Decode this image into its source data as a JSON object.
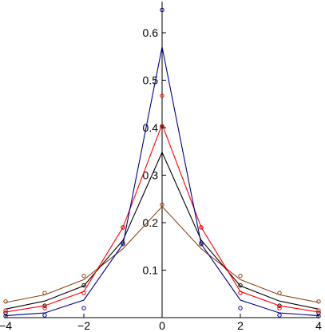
{
  "chart_data": {
    "type": "line",
    "title": "",
    "xlabel": "",
    "ylabel": "",
    "xlim": [
      -4,
      4
    ],
    "ylim": [
      0,
      0.65
    ],
    "grid": false,
    "axes_style": "crossed-at-origin",
    "x_ticks": [
      -4,
      -2,
      0,
      2,
      4
    ],
    "x_tick_labels": [
      "−4",
      "−2",
      "0",
      "2",
      "4"
    ],
    "y_ticks": [
      0.1,
      0.2,
      0.3,
      0.4,
      0.5,
      0.6
    ],
    "y_tick_labels": [
      "0.1",
      "0.2",
      "0.3",
      "0.4",
      "0.5",
      "0.6"
    ],
    "x": [
      -4,
      -3,
      -2,
      -1,
      0,
      1,
      2,
      3,
      4
    ],
    "series": [
      {
        "color": "#8b4513",
        "line": [
          0.032,
          0.048,
          0.08,
          0.145,
          0.234,
          0.145,
          0.08,
          0.048,
          0.032
        ],
        "markers": [
          0.034,
          0.052,
          0.088,
          0.158,
          0.238,
          0.158,
          0.088,
          0.052,
          0.034
        ]
      },
      {
        "color": "#000000",
        "line": [
          0.018,
          0.035,
          0.067,
          0.163,
          0.348,
          0.163,
          0.067,
          0.035,
          0.018
        ],
        "markers": [
          0.01,
          0.025,
          0.068,
          0.19,
          0.403,
          0.19,
          0.068,
          0.025,
          0.01
        ]
      },
      {
        "color": "#ff0000",
        "line": [
          0.012,
          0.025,
          0.055,
          0.19,
          0.407,
          0.19,
          0.055,
          0.025,
          0.012
        ],
        "markers": [
          0.015,
          0.02,
          0.052,
          0.19,
          0.467,
          0.19,
          0.052,
          0.02,
          0.015
        ]
      },
      {
        "color": "#00008b",
        "line": [
          0.004,
          0.01,
          0.037,
          0.155,
          0.57,
          0.155,
          0.037,
          0.01,
          0.004
        ],
        "markers": [
          0.003,
          0.005,
          0.02,
          0.155,
          0.648,
          0.155,
          0.02,
          0.005,
          0.003
        ]
      }
    ]
  }
}
